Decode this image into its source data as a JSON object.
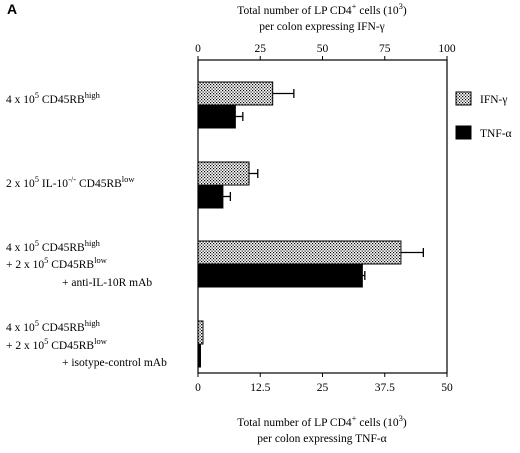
{
  "panel_letter": "A",
  "chart_data": {
    "type": "bar",
    "orientation": "horizontal",
    "categories": [
      {
        "lines": [
          {
            "pre": "4 x 10",
            "sup": "5",
            "post": " CD45RB",
            "sup2": "high"
          }
        ]
      },
      {
        "lines": [
          {
            "pre": "2 x 10",
            "sup": "5",
            "post": " IL-10",
            "sup2": "-/-",
            "post2": " CD45RB",
            "sup3": "low"
          }
        ]
      },
      {
        "lines": [
          {
            "pre": "4 x 10",
            "sup": "5",
            "post": " CD45RB",
            "sup2": "high"
          },
          {
            "pre": "+ 2 x 10",
            "sup": "5",
            "post": " CD45RB",
            "sup2": "low"
          },
          {
            "pre": "+ anti-IL-10R mAb",
            "indent": true
          }
        ]
      },
      {
        "lines": [
          {
            "pre": "4 x 10",
            "sup": "5",
            "post": " CD45RB",
            "sup2": "high"
          },
          {
            "pre": "+ 2 x 10",
            "sup": "5",
            "post": " CD45RB",
            "sup2": "low"
          },
          {
            "pre": "+ isotype-control mAb",
            "indent": true
          }
        ]
      }
    ],
    "series": [
      {
        "name": "IFN-γ",
        "values": [
          30,
          20.5,
          81.5,
          2
        ],
        "errors": [
          8.5,
          3.5,
          9,
          0
        ],
        "axis": "top",
        "pattern": "dotted"
      },
      {
        "name": "TNF-α",
        "values": [
          7.5,
          5,
          33,
          0.5
        ],
        "errors": [
          1.5,
          1.5,
          0.5,
          0
        ],
        "axis": "bottom",
        "pattern": "solid"
      }
    ],
    "top_axis": {
      "ticks": [
        0,
        25,
        50,
        75,
        100
      ],
      "range": [
        0,
        100
      ],
      "label_line1": {
        "pre": "Total number of LP CD4",
        "sup": "+",
        "mid": " cells (10",
        "sup2": "3",
        "post": ")"
      },
      "label_line2": "per colon expressing IFN-γ"
    },
    "bottom_axis": {
      "ticks": [
        0,
        12.5,
        25,
        37.5,
        50
      ],
      "range": [
        0,
        50
      ],
      "label_line1": {
        "pre": "Total number of LP CD4",
        "sup": "+",
        "mid": " cells (10",
        "sup2": "3",
        "post": ")"
      },
      "label_line2": "per colon expressing TNF-α"
    },
    "legend": {
      "position": "right",
      "entries": [
        "IFN-γ",
        "TNF-α"
      ]
    },
    "grid": false
  }
}
